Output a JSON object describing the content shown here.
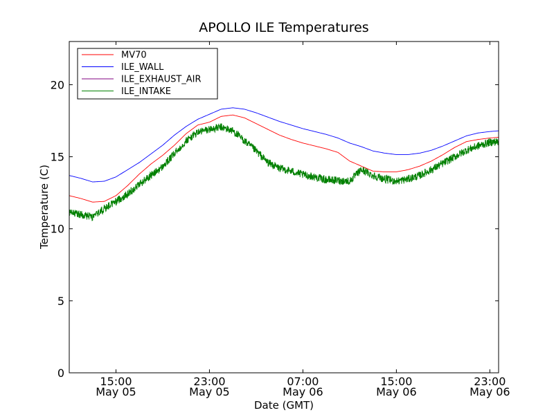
{
  "chart_data": {
    "type": "line",
    "title": "APOLLO ILE Temperatures",
    "xlabel": "Date (GMT)",
    "ylabel": "Temperature (C)",
    "x_unit": "hours",
    "xlim": [
      "May 05 11:00",
      "May 06 23:45"
    ],
    "ylim": [
      0,
      23
    ],
    "y_ticks": [
      0,
      5,
      10,
      15,
      20
    ],
    "x_ticks": [
      {
        "time": "May 05 15:00",
        "line1": "15:00",
        "line2": "May 05"
      },
      {
        "time": "May 05 23:00",
        "line1": "23:00",
        "line2": "May 05"
      },
      {
        "time": "May 06 07:00",
        "line1": "07:00",
        "line2": "May 06"
      },
      {
        "time": "May 06 15:00",
        "line1": "15:00",
        "line2": "May 06"
      },
      {
        "time": "May 06 23:00",
        "line1": "23:00",
        "line2": "May 06"
      }
    ],
    "legend": {
      "placement": "upper-left"
    },
    "grid": false,
    "series": [
      {
        "name": "MV70",
        "color": "#ff0000",
        "x": [
          "May 05 11:00",
          "May 05 12:00",
          "May 05 13:00",
          "May 05 14:00",
          "May 05 15:00",
          "May 05 16:00",
          "May 05 17:00",
          "May 05 18:00",
          "May 05 19:00",
          "May 05 20:00",
          "May 05 21:00",
          "May 05 22:00",
          "May 05 23:00",
          "May 06 00:00",
          "May 06 01:00",
          "May 06 02:00",
          "May 06 03:00",
          "May 06 04:00",
          "May 06 05:00",
          "May 06 06:00",
          "May 06 07:00",
          "May 06 08:00",
          "May 06 09:00",
          "May 06 10:00",
          "May 06 11:00",
          "May 06 12:00",
          "May 06 13:00",
          "May 06 14:00",
          "May 06 15:00",
          "May 06 16:00",
          "May 06 17:00",
          "May 06 18:00",
          "May 06 19:00",
          "May 06 20:00",
          "May 06 21:00",
          "May 06 22:00",
          "May 06 23:00",
          "May 06 23:45"
        ],
        "values": [
          12.3,
          12.1,
          11.85,
          11.9,
          12.3,
          13.0,
          13.8,
          14.5,
          15.1,
          15.8,
          16.6,
          17.2,
          17.4,
          17.8,
          17.9,
          17.7,
          17.3,
          16.9,
          16.5,
          16.2,
          15.95,
          15.75,
          15.55,
          15.3,
          14.7,
          14.35,
          14.0,
          13.95,
          13.95,
          14.1,
          14.35,
          14.7,
          15.15,
          15.65,
          16.05,
          16.2,
          16.3,
          16.35
        ]
      },
      {
        "name": "ILE_WALL",
        "color": "#0000ff",
        "x": [
          "May 05 11:00",
          "May 05 12:00",
          "May 05 13:00",
          "May 05 14:00",
          "May 05 15:00",
          "May 05 16:00",
          "May 05 17:00",
          "May 05 18:00",
          "May 05 19:00",
          "May 05 20:00",
          "May 05 21:00",
          "May 05 22:00",
          "May 05 23:00",
          "May 06 00:00",
          "May 06 01:00",
          "May 06 02:00",
          "May 06 03:00",
          "May 06 04:00",
          "May 06 05:00",
          "May 06 06:00",
          "May 06 07:00",
          "May 06 08:00",
          "May 06 09:00",
          "May 06 10:00",
          "May 06 11:00",
          "May 06 12:00",
          "May 06 13:00",
          "May 06 14:00",
          "May 06 15:00",
          "May 06 16:00",
          "May 06 17:00",
          "May 06 18:00",
          "May 06 19:00",
          "May 06 20:00",
          "May 06 21:00",
          "May 06 22:00",
          "May 06 23:00",
          "May 06 23:45"
        ],
        "values": [
          13.7,
          13.5,
          13.25,
          13.3,
          13.6,
          14.1,
          14.6,
          15.2,
          15.8,
          16.5,
          17.1,
          17.6,
          17.95,
          18.3,
          18.4,
          18.3,
          18.05,
          17.75,
          17.45,
          17.2,
          16.95,
          16.75,
          16.55,
          16.3,
          15.95,
          15.7,
          15.4,
          15.25,
          15.15,
          15.15,
          15.25,
          15.45,
          15.75,
          16.1,
          16.45,
          16.65,
          16.75,
          16.8
        ]
      },
      {
        "name": "ILE_EXHAUST_AIR",
        "color": "#800080",
        "x": [],
        "values": []
      },
      {
        "name": "ILE_INTAKE",
        "color": "#008000",
        "x": [
          "May 05 11:00",
          "May 05 12:00",
          "May 05 13:00",
          "May 05 14:00",
          "May 05 15:00",
          "May 05 16:00",
          "May 05 17:00",
          "May 05 18:00",
          "May 05 19:00",
          "May 05 20:00",
          "May 05 21:00",
          "May 05 22:00",
          "May 05 23:00",
          "May 06 00:00",
          "May 06 01:00",
          "May 06 02:00",
          "May 06 03:00",
          "May 06 04:00",
          "May 06 05:00",
          "May 06 06:00",
          "May 06 07:00",
          "May 06 08:00",
          "May 06 09:00",
          "May 06 10:00",
          "May 06 11:00",
          "May 06 12:00",
          "May 06 13:00",
          "May 06 14:00",
          "May 06 15:00",
          "May 06 16:00",
          "May 06 17:00",
          "May 06 18:00",
          "May 06 19:00",
          "May 06 20:00",
          "May 06 21:00",
          "May 06 22:00",
          "May 06 23:00",
          "May 06 23:45"
        ],
        "values": [
          11.1,
          11.0,
          10.8,
          11.4,
          11.9,
          12.4,
          13.1,
          13.7,
          14.3,
          15.2,
          16.1,
          16.7,
          16.9,
          17.05,
          16.8,
          16.1,
          15.4,
          14.6,
          14.2,
          14.0,
          13.75,
          13.6,
          13.4,
          13.35,
          13.3,
          14.1,
          13.7,
          13.45,
          13.3,
          13.45,
          13.7,
          14.1,
          14.55,
          15.0,
          15.45,
          15.75,
          16.0,
          16.05
        ]
      }
    ]
  }
}
